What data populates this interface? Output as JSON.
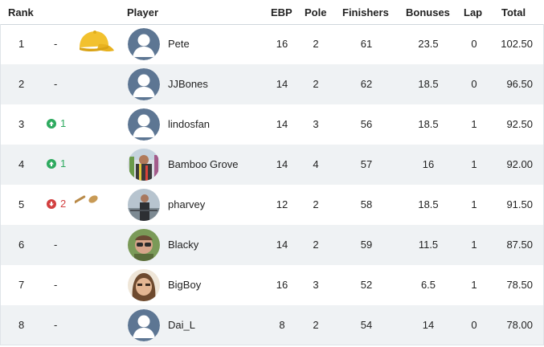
{
  "header": {
    "rank": "Rank",
    "player": "Player",
    "ebp": "EBP",
    "pole": "Pole",
    "finishers": "Finishers",
    "bonuses": "Bonuses",
    "lap": "Lap",
    "total": "Total"
  },
  "colors": {
    "up": "#2eaa5f",
    "down": "#d24040",
    "cap": "#f2c12e",
    "spoon": "#c89a55",
    "avatar_default": "#5d7693"
  },
  "rows": [
    {
      "rank": "1",
      "change": "-",
      "trophy": "yellow-cap-icon",
      "name": "Pete",
      "ebp": "16",
      "pole": "2",
      "finishers": "61",
      "bonuses": "23.5",
      "lap": "0",
      "total": "102.50"
    },
    {
      "rank": "2",
      "change": "-",
      "name": "JJBones",
      "ebp": "14",
      "pole": "2",
      "finishers": "62",
      "bonuses": "18.5",
      "lap": "0",
      "total": "96.50"
    },
    {
      "rank": "3",
      "change": "1",
      "direction": "up",
      "name": "lindosfan",
      "ebp": "14",
      "pole": "3",
      "finishers": "56",
      "bonuses": "18.5",
      "lap": "1",
      "total": "92.50"
    },
    {
      "rank": "4",
      "change": "1",
      "direction": "up",
      "name": "Bamboo Grove",
      "ebp": "14",
      "pole": "4",
      "finishers": "57",
      "bonuses": "16",
      "lap": "1",
      "total": "92.00"
    },
    {
      "rank": "5",
      "change": "2",
      "direction": "down",
      "trophy": "wooden-spoon-icon",
      "name": "pharvey",
      "ebp": "12",
      "pole": "2",
      "finishers": "58",
      "bonuses": "18.5",
      "lap": "1",
      "total": "91.50"
    },
    {
      "rank": "6",
      "change": "-",
      "name": "Blacky",
      "ebp": "14",
      "pole": "2",
      "finishers": "59",
      "bonuses": "11.5",
      "lap": "1",
      "total": "87.50"
    },
    {
      "rank": "7",
      "change": "-",
      "name": "BigBoy",
      "ebp": "16",
      "pole": "3",
      "finishers": "52",
      "bonuses": "6.5",
      "lap": "1",
      "total": "78.50"
    },
    {
      "rank": "8",
      "change": "-",
      "name": "Dai_L",
      "ebp": "8",
      "pole": "2",
      "finishers": "54",
      "bonuses": "14",
      "lap": "0",
      "total": "78.00"
    }
  ]
}
